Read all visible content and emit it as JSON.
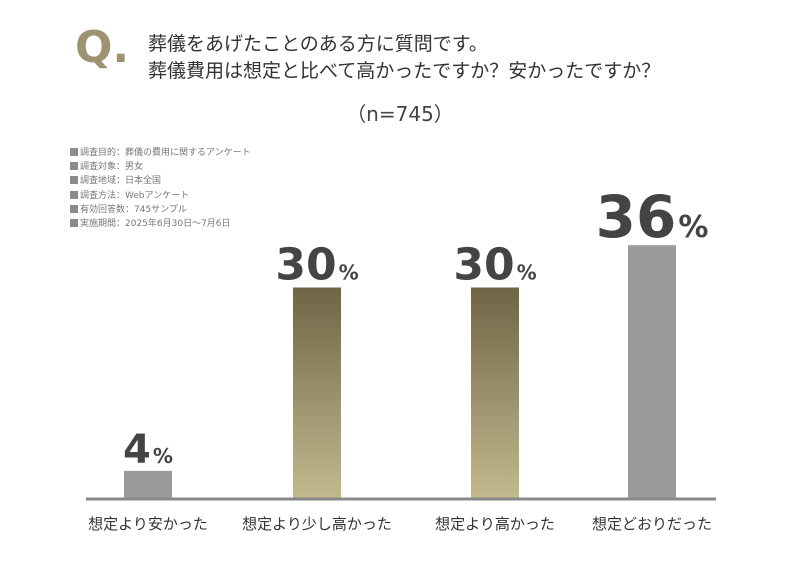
{
  "header": {
    "q_mark": "Q",
    "q_dot": ".",
    "question_line1": "葬儀をあげたことのある方に質問です。",
    "question_line2": "葬儀費用は想定と比べて高かったですか？安かったですか？",
    "sample_size": "（n=745）"
  },
  "survey_info": [
    "調査目的：葬儀の費用に関するアンケート",
    "調査対象：男女",
    "調査地域：日本全国",
    "調査方法：Webアンケート",
    "有効回答数：745サンプル",
    "実施期間：2025年6月30日〜7月6日"
  ],
  "colors": {
    "gray_bar": "#9b9b9b",
    "gold_top": "#6f6546",
    "gold_bottom": "#c3b98e",
    "axis": "#888888",
    "q_mark": "#9d9372"
  },
  "chart_data": {
    "type": "bar",
    "title": "葬儀費用は想定と比べて高かったですか？安かったですか？",
    "categories": [
      "想定より安かった",
      "想定より少し高かった",
      "想定より高かった",
      "想定どおりだった"
    ],
    "values": [
      4,
      30,
      30,
      36
    ],
    "value_labels": [
      "4",
      "30",
      "30",
      "36"
    ],
    "unit": "%",
    "bar_styles": [
      "gray",
      "gold",
      "gold",
      "gray"
    ],
    "ylim": [
      0,
      40
    ],
    "xlabel": "",
    "ylabel": "",
    "grid": false,
    "legend": "none"
  }
}
